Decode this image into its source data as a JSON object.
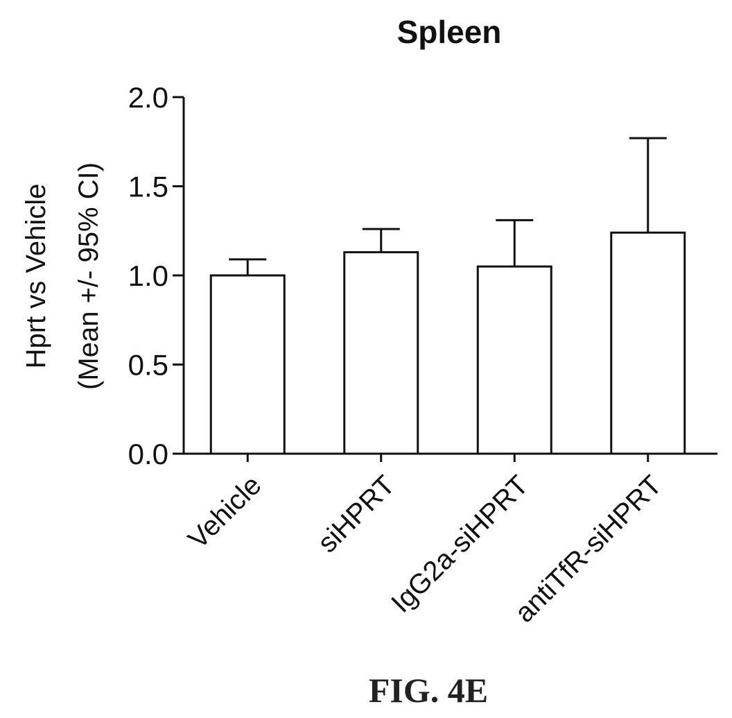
{
  "chart_data": {
    "type": "bar",
    "title": "Spleen",
    "ylabel_line1": "Hprt vs Vehicle",
    "ylabel_line2": "(Mean +/- 95% CI)",
    "xlabel": "",
    "categories": [
      "Vehicle",
      "siHPRT",
      "IgG2a-siHPRT",
      "antiTfR-siHPRT"
    ],
    "values": [
      1.0,
      1.13,
      1.05,
      1.24
    ],
    "error_upper": [
      1.09,
      1.26,
      1.31,
      1.77
    ],
    "ylim": [
      0.0,
      2.0
    ],
    "yticks": [
      "0.0",
      "0.5",
      "1.0",
      "1.5",
      "2.0"
    ],
    "ytick_values": [
      0.0,
      0.5,
      1.0,
      1.5,
      2.0
    ],
    "grid": false,
    "bar_fill": "#ffffff",
    "bar_stroke": "#111111"
  },
  "figure_label": "FIG. 4E"
}
